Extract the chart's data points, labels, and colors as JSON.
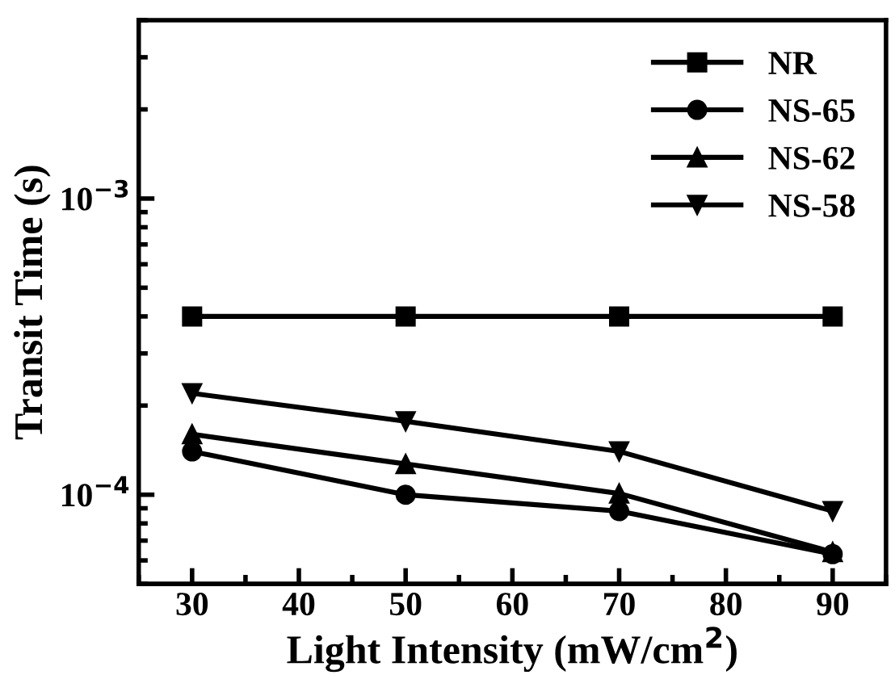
{
  "chart_data": {
    "type": "line",
    "xlabel": "Light Intensity (mW/cm$^{2}$)",
    "ylabel": "Transit Time (s)",
    "x": [
      30,
      50,
      70,
      90
    ],
    "xlim": [
      25,
      95
    ],
    "xticks": [
      30,
      40,
      50,
      60,
      70,
      80,
      90
    ],
    "log": "y",
    "ylim": [
      5e-05,
      0.004
    ],
    "yticks": [
      {
        "value": 0.0001,
        "label": "10$^{−4}$"
      },
      {
        "value": 0.001,
        "label": "10$^{−3}$"
      }
    ],
    "grid": false,
    "legend": "top right",
    "line_style": "solid",
    "series": [
      {
        "name": "NR",
        "color": "#000000",
        "marker": "square",
        "values": [
          0.0004,
          0.0004,
          0.0004,
          0.0004
        ]
      },
      {
        "name": "NS-65",
        "color": "#000000",
        "marker": "circle",
        "values": [
          0.00014,
          0.0001,
          8.8e-05,
          6.3e-05
        ]
      },
      {
        "name": "NS-62",
        "color": "#000000",
        "marker": "triangle",
        "values": [
          0.00016,
          0.000127,
          0.000101,
          6.4e-05
        ]
      },
      {
        "name": "NS-58",
        "color": "#000000",
        "marker": "triangle_down",
        "values": [
          0.00022,
          0.000177,
          0.00014,
          8.8e-05
        ]
      }
    ]
  }
}
